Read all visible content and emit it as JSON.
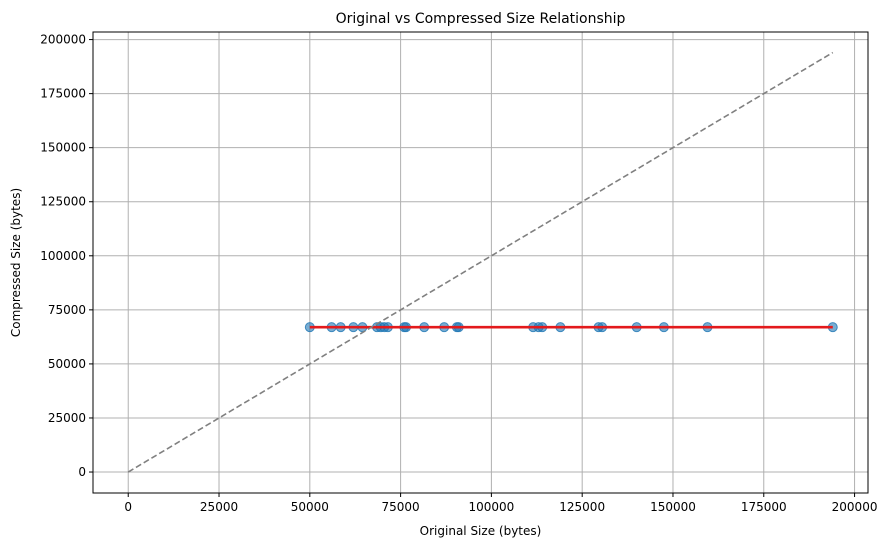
{
  "chart_data": {
    "type": "scatter",
    "title": "Original vs Compressed Size Relationship",
    "xlabel": "Original Size (bytes)",
    "ylabel": "Compressed Size (bytes)",
    "xlim": [
      -9700,
      203700
    ],
    "ylim": [
      -9700,
      203500
    ],
    "xticks": [
      0,
      25000,
      50000,
      75000,
      100000,
      125000,
      150000,
      175000,
      200000
    ],
    "yticks": [
      0,
      25000,
      50000,
      75000,
      100000,
      125000,
      150000,
      175000,
      200000
    ],
    "grid": true,
    "series": [
      {
        "kind": "scatter",
        "color": "#1f77b4",
        "x": [
          50000,
          56000,
          58500,
          62000,
          64500,
          68500,
          69500,
          70500,
          71500,
          76000,
          76500,
          81500,
          87000,
          90500,
          91000,
          111500,
          113000,
          114000,
          119000,
          129500,
          130500,
          140000,
          147500,
          159500,
          194000
        ],
        "y": [
          67000,
          67000,
          67000,
          67000,
          67000,
          67000,
          67000,
          67000,
          67000,
          67000,
          67000,
          67000,
          67000,
          67000,
          67000,
          67000,
          67000,
          67000,
          67000,
          67000,
          67000,
          67000,
          67000,
          67000,
          67000
        ]
      },
      {
        "kind": "line",
        "color": "#e31a1c",
        "x": [
          50000,
          194000
        ],
        "y": [
          67000,
          67000
        ]
      },
      {
        "kind": "line",
        "style": "dashed",
        "color": "#808080",
        "x": [
          0,
          194000
        ],
        "y": [
          0,
          194000
        ]
      }
    ]
  }
}
